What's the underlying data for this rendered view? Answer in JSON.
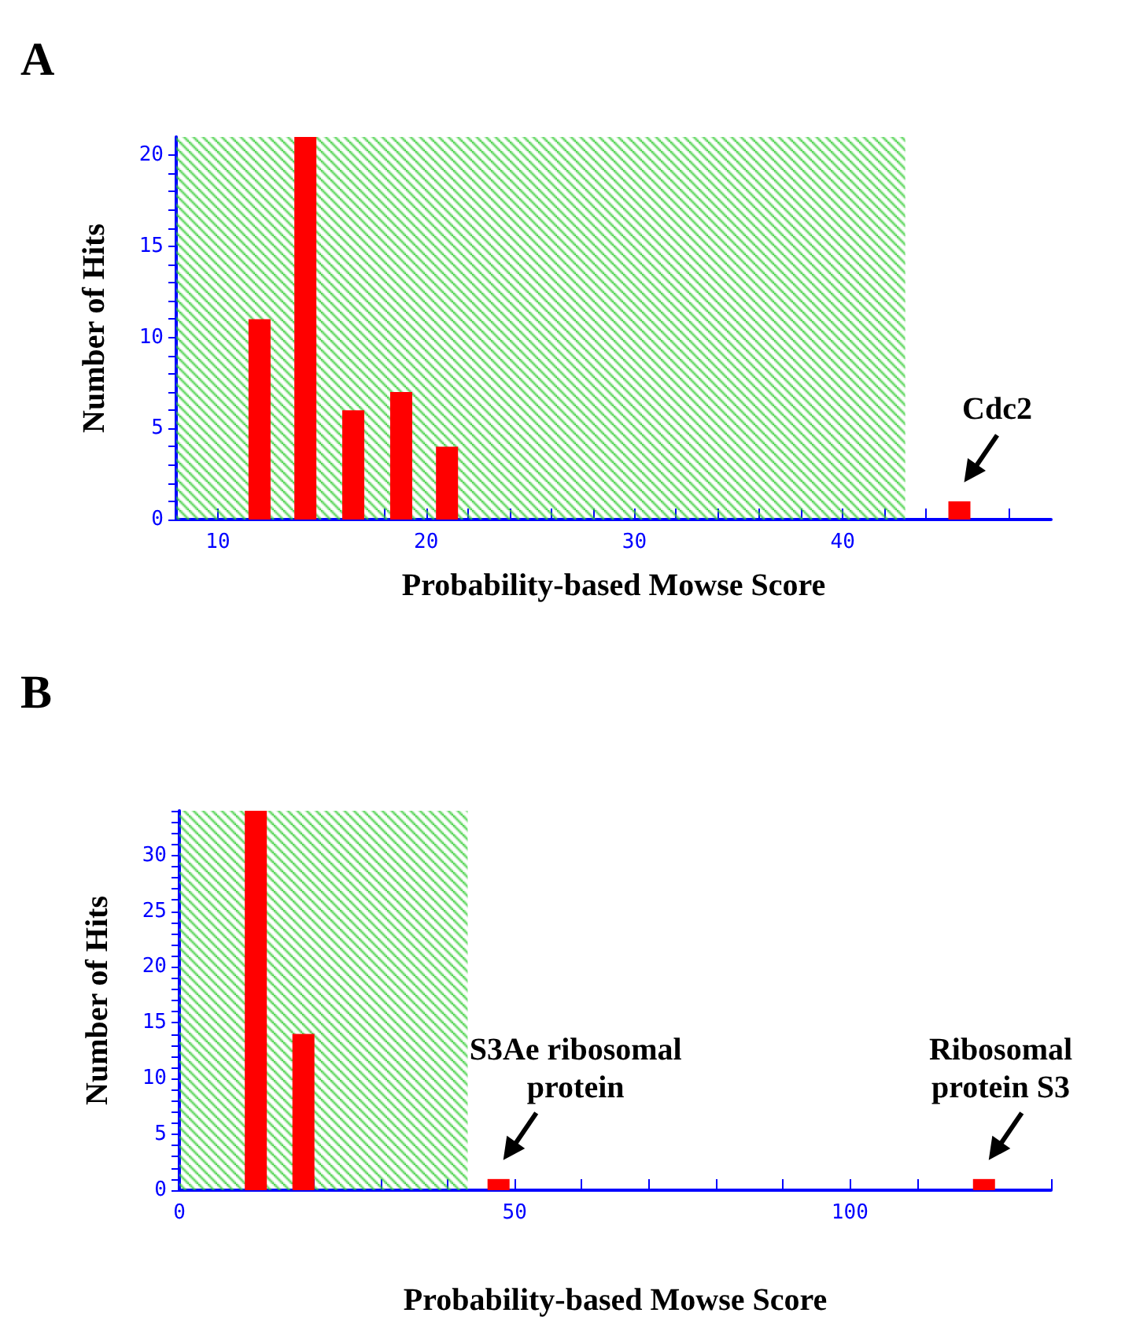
{
  "chart_data": [
    {
      "type": "bar",
      "title": "A",
      "xlabel": "Probability-based Mowse Score",
      "ylabel": "Number of Hits",
      "color": "#ff0000",
      "x": [
        12,
        14.2,
        16.5,
        18.8,
        21,
        45.6
      ],
      "values": [
        11,
        21,
        6,
        7,
        4,
        1
      ],
      "xlim": [
        8,
        50
      ],
      "xticks": [
        {
          "value": 8,
          "label": null
        },
        10,
        {
          "value": 12,
          "label": null
        },
        {
          "value": 14,
          "label": null
        },
        {
          "value": 16,
          "label": null
        },
        {
          "value": 18,
          "label": null
        },
        20,
        {
          "value": 22,
          "label": null
        },
        {
          "value": 24,
          "label": null
        },
        {
          "value": 26,
          "label": null
        },
        {
          "value": 28,
          "label": null
        },
        30,
        {
          "value": 32,
          "label": null
        },
        {
          "value": 34,
          "label": null
        },
        {
          "value": 36,
          "label": null
        },
        {
          "value": 38,
          "label": null
        },
        40,
        {
          "value": 42,
          "label": null
        },
        {
          "value": 44,
          "label": null
        },
        {
          "value": 46,
          "label": null
        },
        {
          "value": 48,
          "label": null
        }
      ],
      "ylim": [
        0,
        21
      ],
      "yticks": [
        0,
        {
          "value": 1,
          "label": null
        },
        {
          "value": 2,
          "label": null
        },
        {
          "value": 3,
          "label": null
        },
        {
          "value": 4,
          "label": null
        },
        5,
        {
          "value": 6,
          "label": null
        },
        {
          "value": 7,
          "label": null
        },
        {
          "value": 8,
          "label": null
        },
        {
          "value": 9,
          "label": null
        },
        10,
        {
          "value": 11,
          "label": null
        },
        {
          "value": 12,
          "label": null
        },
        {
          "value": 13,
          "label": null
        },
        {
          "value": 14,
          "label": null
        },
        15,
        {
          "value": 16,
          "label": null
        },
        {
          "value": 17,
          "label": null
        },
        {
          "value": 18,
          "label": null
        },
        {
          "value": 19,
          "label": null
        },
        20
      ],
      "bands": [
        {
          "axis": "x",
          "from": 8,
          "to": 43,
          "color": "#33cc33"
        }
      ],
      "annotations": [
        {
          "text": "Cdc2",
          "x": 45.6,
          "y": 1
        }
      ]
    },
    {
      "type": "bar",
      "title": "B",
      "xlabel": "Probability-based Mowse Score",
      "ylabel": "Number of Hits",
      "color": "#ff0000",
      "x": [
        11.4,
        18.5,
        47.6,
        120
      ],
      "values": [
        34,
        14,
        1,
        1
      ],
      "xlim": [
        0,
        130
      ],
      "xticks": [
        0,
        {
          "value": 10,
          "label": null
        },
        {
          "value": 20,
          "label": null
        },
        {
          "value": 30,
          "label": null
        },
        {
          "value": 40,
          "label": null
        },
        50,
        {
          "value": 60,
          "label": null
        },
        {
          "value": 70,
          "label": null
        },
        {
          "value": 80,
          "label": null
        },
        {
          "value": 90,
          "label": null
        },
        100,
        {
          "value": 110,
          "label": null
        },
        {
          "value": 120,
          "label": null
        },
        {
          "value": 130,
          "label": null
        }
      ],
      "ylim": [
        0,
        34
      ],
      "yticks": [
        0,
        {
          "value": 1,
          "label": null
        },
        {
          "value": 2,
          "label": null
        },
        {
          "value": 3,
          "label": null
        },
        {
          "value": 4,
          "label": null
        },
        5,
        {
          "value": 6,
          "label": null
        },
        {
          "value": 7,
          "label": null
        },
        {
          "value": 8,
          "label": null
        },
        {
          "value": 9,
          "label": null
        },
        10,
        {
          "value": 11,
          "label": null
        },
        {
          "value": 12,
          "label": null
        },
        {
          "value": 13,
          "label": null
        },
        {
          "value": 14,
          "label": null
        },
        15,
        {
          "value": 16,
          "label": null
        },
        {
          "value": 17,
          "label": null
        },
        {
          "value": 18,
          "label": null
        },
        {
          "value": 19,
          "label": null
        },
        20,
        {
          "value": 21,
          "label": null
        },
        {
          "value": 22,
          "label": null
        },
        {
          "value": 23,
          "label": null
        },
        {
          "value": 24,
          "label": null
        },
        25,
        {
          "value": 26,
          "label": null
        },
        {
          "value": 27,
          "label": null
        },
        {
          "value": 28,
          "label": null
        },
        {
          "value": 29,
          "label": null
        },
        30,
        {
          "value": 31,
          "label": null
        },
        {
          "value": 32,
          "label": null
        },
        {
          "value": 33,
          "label": null
        },
        {
          "value": 34,
          "label": null
        }
      ],
      "bands": [
        {
          "axis": "x",
          "from": 0,
          "to": 43,
          "color": "#33cc33"
        }
      ],
      "annotations": [
        {
          "text": "S3Ae ribosomal protein",
          "x": 47.6,
          "y": 1
        },
        {
          "text": "Ribosomal protein S3",
          "x": 120,
          "y": 1
        }
      ]
    }
  ]
}
